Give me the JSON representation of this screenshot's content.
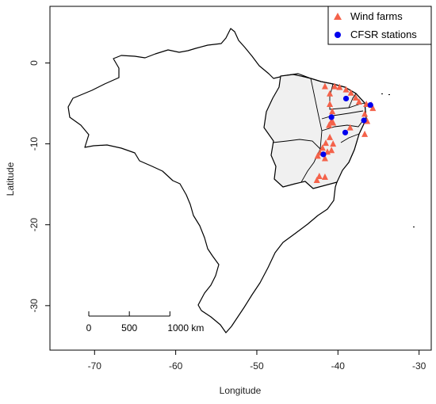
{
  "chart_data": {
    "type": "scatter",
    "xlabel": "Longitude",
    "ylabel": "Latitude",
    "xlim": [
      -75.5,
      -28.5
    ],
    "ylim": [
      -35.5,
      7
    ],
    "x_ticks": [
      -70,
      -60,
      -50,
      -40,
      -30
    ],
    "y_ticks": [
      0,
      -10,
      -20,
      -30
    ],
    "grid": false,
    "legend_position": "top-right",
    "series": [
      {
        "name": "Wind farms",
        "marker": "triangle",
        "color": "#f4624a",
        "points": [
          {
            "x": -41.6,
            "y": -2.9
          },
          {
            "x": -40.4,
            "y": -2.9
          },
          {
            "x": -39.8,
            "y": -3.0
          },
          {
            "x": -39.0,
            "y": -3.3
          },
          {
            "x": -38.4,
            "y": -3.7
          },
          {
            "x": -37.8,
            "y": -4.3
          },
          {
            "x": -37.4,
            "y": -4.8
          },
          {
            "x": -36.5,
            "y": -5.1
          },
          {
            "x": -35.9,
            "y": -5.2
          },
          {
            "x": -35.7,
            "y": -5.6
          },
          {
            "x": -41.0,
            "y": -3.8
          },
          {
            "x": -41.0,
            "y": -5.1
          },
          {
            "x": -40.7,
            "y": -6.0
          },
          {
            "x": -40.8,
            "y": -7.2
          },
          {
            "x": -41.1,
            "y": -7.7
          },
          {
            "x": -40.6,
            "y": -7.4
          },
          {
            "x": -36.7,
            "y": -6.3
          },
          {
            "x": -36.4,
            "y": -7.2
          },
          {
            "x": -36.7,
            "y": -8.8
          },
          {
            "x": -41.0,
            "y": -9.2
          },
          {
            "x": -41.5,
            "y": -9.9
          },
          {
            "x": -41.9,
            "y": -10.5
          },
          {
            "x": -40.8,
            "y": -10.8
          },
          {
            "x": -40.6,
            "y": -10.0
          },
          {
            "x": -41.3,
            "y": -11.0
          },
          {
            "x": -42.2,
            "y": -11.1
          },
          {
            "x": -42.5,
            "y": -11.5
          },
          {
            "x": -41.6,
            "y": -11.8
          },
          {
            "x": -42.3,
            "y": -14.0
          },
          {
            "x": -42.6,
            "y": -14.5
          },
          {
            "x": -41.6,
            "y": -14.1
          },
          {
            "x": -38.5,
            "y": -8.0
          }
        ]
      },
      {
        "name": "CFSR stations",
        "marker": "circle",
        "color": "#0000ee",
        "points": [
          {
            "x": -39.0,
            "y": -4.4
          },
          {
            "x": -36.0,
            "y": -5.2
          },
          {
            "x": -40.8,
            "y": -6.7
          },
          {
            "x": -36.8,
            "y": -7.1
          },
          {
            "x": -39.1,
            "y": -8.6
          },
          {
            "x": -41.8,
            "y": -11.3
          }
        ]
      }
    ],
    "scale_bar": {
      "labels": [
        "0",
        "500",
        "1000 km"
      ],
      "segment_degrees": 5
    }
  },
  "colors": {
    "region_fill": "#f0f0f0",
    "outline": "#000000"
  }
}
